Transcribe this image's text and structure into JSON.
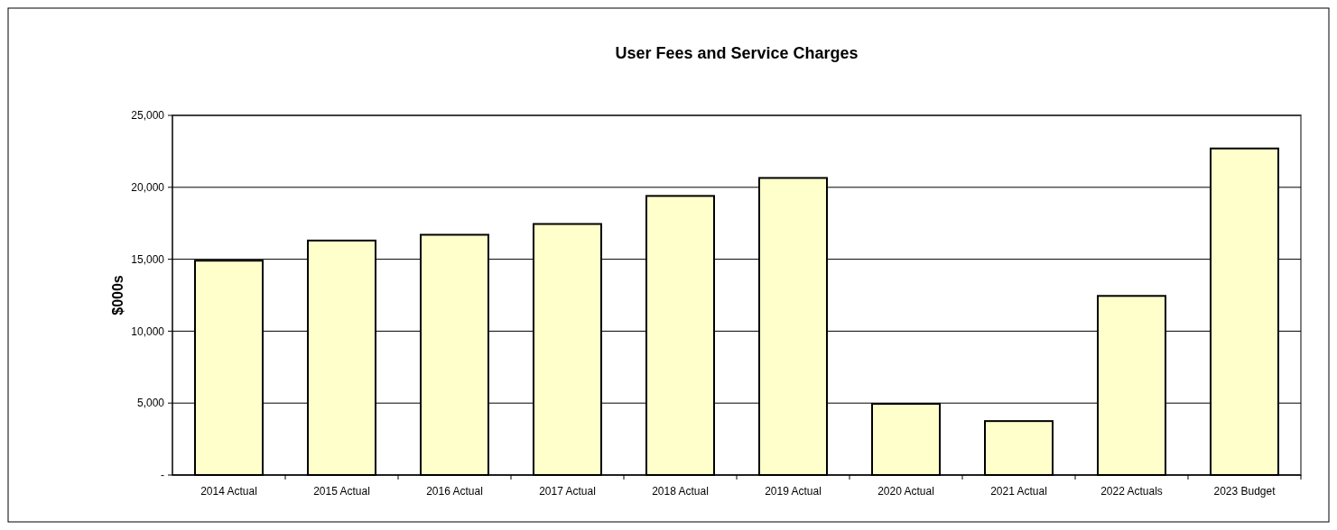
{
  "chart_data": {
    "type": "bar",
    "title": "User Fees and Service Charges",
    "ylabel": "$000s",
    "categories": [
      "2014 Actual",
      "2015 Actual",
      "2016 Actual",
      "2017 Actual",
      "2018 Actual",
      "2019 Actual",
      "2020 Actual",
      "2021 Actual",
      "2022 Actuals",
      "2023 Budget"
    ],
    "values": [
      14900,
      16300,
      16700,
      17450,
      19400,
      20650,
      4950,
      3750,
      12450,
      22700
    ],
    "color": "#ffffcc",
    "ylim": [
      0,
      25000
    ],
    "yticks": [
      {
        "value": 0,
        "label": "-"
      },
      {
        "value": 5000,
        "label": "5,000"
      },
      {
        "value": 10000,
        "label": "10,000"
      },
      {
        "value": 15000,
        "label": "15,000"
      },
      {
        "value": 20000,
        "label": "20,000"
      },
      {
        "value": 25000,
        "label": "25,000"
      }
    ],
    "grid": "y"
  }
}
